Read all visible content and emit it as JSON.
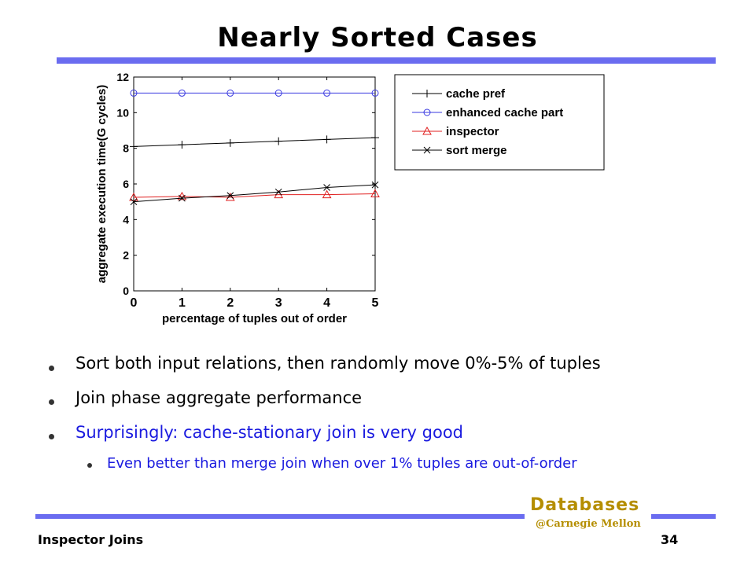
{
  "slide": {
    "title": "Nearly Sorted Cases",
    "footer_left": "Inspector Joins",
    "page_number": "34",
    "brand_main": "Databases",
    "brand_sub": "@Carnegie Mellon"
  },
  "bullets": [
    {
      "text": "Sort both input relations, then randomly move 0%-5% of tuples"
    },
    {
      "text": "Join phase aggregate performance"
    },
    {
      "text": "Surprisingly: cache-stationary join is very good"
    },
    {
      "text": "Even better than merge join when over 1% tuples are out-of-order"
    }
  ],
  "colors": {
    "accent_rule": "#6a6cf0",
    "highlight_text": "#1a1adf",
    "brand": "#b58e00"
  },
  "chart_data": {
    "type": "line",
    "xlabel": "percentage of tuples out of order",
    "ylabel": "aggregate execution time(G cycles)",
    "xlim": [
      0,
      5
    ],
    "ylim": [
      0,
      12
    ],
    "x_ticks": [
      0,
      1,
      2,
      3,
      4,
      5
    ],
    "y_ticks": [
      0,
      2,
      4,
      6,
      8,
      10,
      12
    ],
    "grid": false,
    "legend_position": "top-right, outside plot",
    "x": [
      0,
      1,
      2,
      3,
      4,
      5
    ],
    "series": [
      {
        "name": "cache pref",
        "marker": "plus",
        "color": "#000000",
        "values": [
          8.1,
          8.2,
          8.3,
          8.4,
          8.5,
          8.6
        ]
      },
      {
        "name": "enhanced cache part",
        "marker": "circle",
        "color": "#3a3ae0",
        "values": [
          11.1,
          11.1,
          11.1,
          11.1,
          11.1,
          11.1
        ]
      },
      {
        "name": "inspector",
        "marker": "triangle",
        "color": "#e02020",
        "values": [
          5.25,
          5.3,
          5.25,
          5.4,
          5.4,
          5.45
        ]
      },
      {
        "name": "sort merge",
        "marker": "x",
        "color": "#000000",
        "values": [
          5.0,
          5.2,
          5.35,
          5.55,
          5.8,
          5.95
        ]
      }
    ]
  }
}
